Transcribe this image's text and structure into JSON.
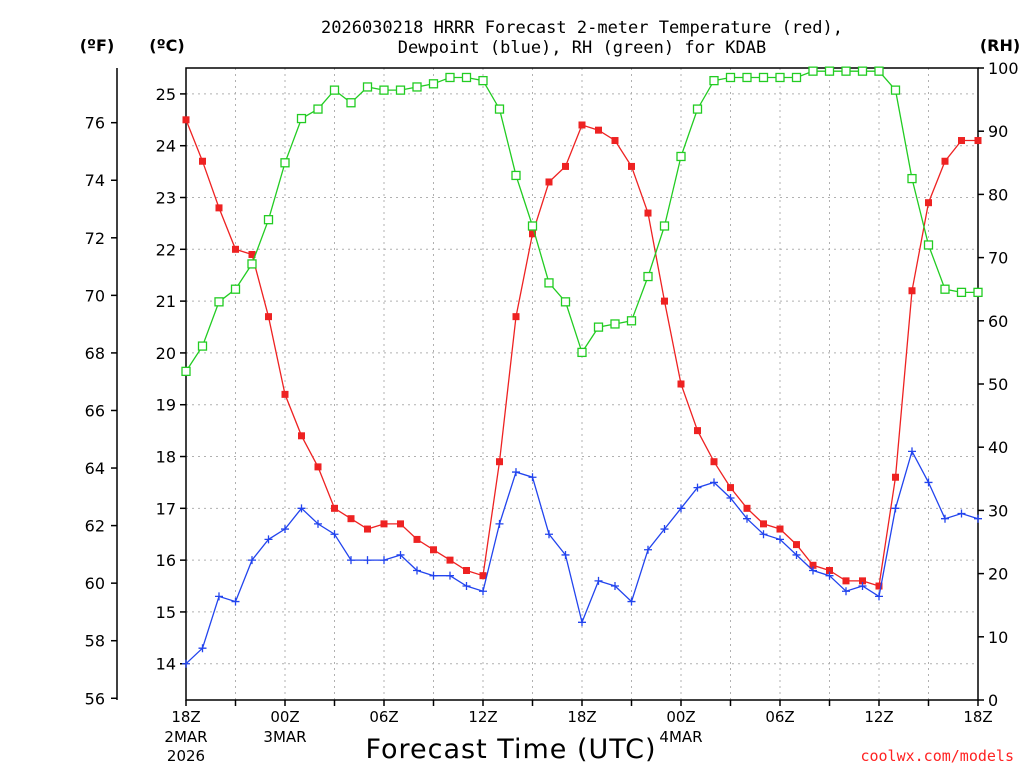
{
  "chart_data": {
    "type": "line",
    "title_line1": "2026030218 HRRR Forecast 2-meter Temperature (red),",
    "title_line2": "Dewpoint (blue), RH (green) for KDAB",
    "xlabel": "Forecast Time (UTC)",
    "credit": "coolwx.com/models",
    "units": {
      "f": "(ºF)",
      "c": "(ºC)",
      "rh": "(RH)"
    },
    "x_range_hours": [
      0,
      48
    ],
    "x_ticks": [
      {
        "hour": 0,
        "label": "18Z",
        "sub1": "2MAR",
        "sub2": "2026"
      },
      {
        "hour": 6,
        "label": "00Z",
        "sub1": "3MAR",
        "sub2": ""
      },
      {
        "hour": 12,
        "label": "06Z",
        "sub1": "",
        "sub2": ""
      },
      {
        "hour": 18,
        "label": "12Z",
        "sub1": "",
        "sub2": ""
      },
      {
        "hour": 24,
        "label": "18Z",
        "sub1": "",
        "sub2": ""
      },
      {
        "hour": 30,
        "label": "00Z",
        "sub1": "4MAR",
        "sub2": ""
      },
      {
        "hour": 36,
        "label": "06Z",
        "sub1": "",
        "sub2": ""
      },
      {
        "hour": 42,
        "label": "12Z",
        "sub1": "",
        "sub2": ""
      },
      {
        "hour": 48,
        "label": "18Z",
        "sub1": "",
        "sub2": ""
      }
    ],
    "y_celsius_range": [
      13.3,
      25.5
    ],
    "y_celsius_ticks": [
      14,
      15,
      16,
      17,
      18,
      19,
      20,
      21,
      22,
      23,
      24,
      25
    ],
    "y_fahrenheit_ticks": [
      56,
      58,
      60,
      62,
      64,
      66,
      68,
      70,
      72,
      74,
      76
    ],
    "y_rh_range": [
      0,
      100
    ],
    "y_rh_ticks": [
      0,
      10,
      20,
      30,
      40,
      50,
      60,
      70,
      80,
      90,
      100
    ],
    "grid": true,
    "series": [
      {
        "name": "Temperature (red)",
        "color": "#ee2222",
        "axis": "celsius",
        "marker": "square-filled",
        "values": [
          24.5,
          23.7,
          22.8,
          22.0,
          21.9,
          20.7,
          19.2,
          18.4,
          17.8,
          17.0,
          16.8,
          16.6,
          16.7,
          16.7,
          16.4,
          16.2,
          16.0,
          15.8,
          15.7,
          17.9,
          20.7,
          22.3,
          23.3,
          23.6,
          24.4,
          24.3,
          24.1,
          23.6,
          22.7,
          21.0,
          19.4,
          18.5,
          17.9,
          17.4,
          17.0,
          16.7,
          16.6,
          16.3,
          15.9,
          15.8,
          15.6,
          15.6,
          15.5,
          17.6,
          21.2,
          22.9,
          23.7,
          24.1,
          24.1
        ]
      },
      {
        "name": "Dewpoint (blue)",
        "color": "#2244ee",
        "axis": "celsius",
        "marker": "plus",
        "values": [
          14.0,
          14.3,
          15.3,
          15.2,
          16.0,
          16.4,
          16.6,
          17.0,
          16.7,
          16.5,
          16.0,
          16.0,
          16.0,
          16.1,
          15.8,
          15.7,
          15.7,
          15.5,
          15.4,
          16.7,
          17.7,
          17.6,
          16.5,
          16.1,
          14.8,
          15.6,
          15.5,
          15.2,
          16.2,
          16.6,
          17.0,
          17.4,
          17.5,
          17.2,
          16.8,
          16.5,
          16.4,
          16.1,
          15.8,
          15.7,
          15.4,
          15.5,
          15.3,
          17.0,
          18.1,
          17.5,
          16.8,
          16.9,
          16.8
        ]
      },
      {
        "name": "RH (green)",
        "color": "#22cc22",
        "axis": "rh",
        "marker": "square-open",
        "values": [
          52,
          56,
          63,
          65,
          69,
          76,
          85,
          92,
          93.5,
          96.5,
          94.5,
          97,
          96.5,
          96.5,
          97,
          97.5,
          98.5,
          98.5,
          98,
          93.5,
          83,
          75,
          66,
          63,
          55,
          59,
          59.5,
          60,
          67,
          75,
          86,
          93.5,
          98,
          98.5,
          98.5,
          98.5,
          98.5,
          98.5,
          99.5,
          99.5,
          99.5,
          99.5,
          99.5,
          96.5,
          82.5,
          72,
          65,
          64.5,
          64.5
        ]
      }
    ]
  }
}
